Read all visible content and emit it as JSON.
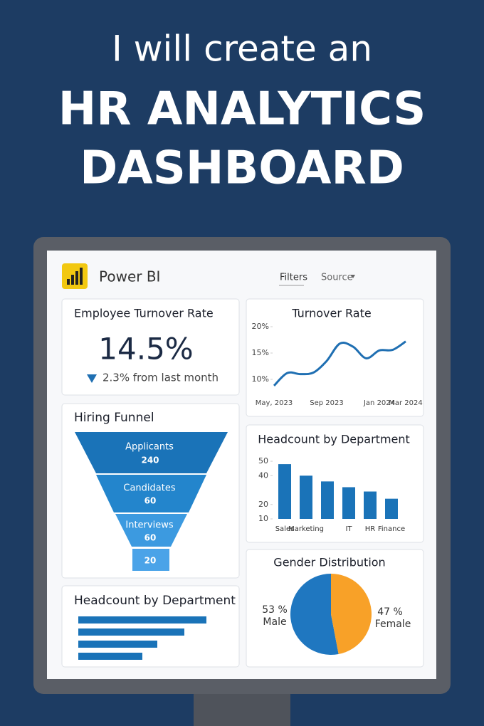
{
  "header": {
    "line1": "I will create an",
    "line2": "HR ANALYTICS",
    "line3": "DASHBOARD"
  },
  "toolbar": {
    "app": "Power BI",
    "filters": "Filters",
    "source": "Source"
  },
  "kpi": {
    "title": "Employee Turnover Rate",
    "value": "14.5%",
    "change": "2.3% from last month"
  },
  "chart_data": [
    {
      "type": "line",
      "title": "Turnover Rate",
      "categories": [
        "May, 2023",
        null,
        null,
        null,
        "Sep 2023",
        null,
        null,
        null,
        "Jan 2024",
        null,
        "Mar 2024"
      ],
      "series": [
        {
          "color": "#1f6fb2",
          "values": [
            8.8,
            11.2,
            11.0,
            11.3,
            13.5,
            16.8,
            16.2,
            14.0,
            15.5,
            15.6,
            17.2
          ]
        }
      ],
      "ylim": [
        8,
        20.5
      ],
      "yticks": [
        {
          "value": 10,
          "label": "10%"
        },
        {
          "value": 15,
          "label": "15%"
        },
        {
          "value": 20,
          "label": "20%"
        }
      ]
    },
    {
      "type": "bar",
      "title": "Headcount by Department",
      "categories": [
        "Sales",
        "Marketing",
        null,
        "IT",
        "HR",
        "Finance"
      ],
      "values": [
        48,
        40,
        36,
        32,
        29,
        24
      ],
      "color": "#1a73b8",
      "ylim": [
        10,
        52
      ],
      "yticks": [
        10,
        20,
        40,
        50
      ]
    },
    {
      "type": "funnel",
      "title": "Hiring Funnel",
      "categories": [
        "Applicants",
        "Candidates",
        "Interviews",
        null
      ],
      "values": [
        240,
        60,
        60,
        20
      ],
      "colors": [
        "#1a73b8",
        "#2385cc",
        "#3c9ae0",
        "#4aa3e8"
      ]
    },
    {
      "type": "hbar",
      "title": "Headcount by Department",
      "values": [
        180,
        149,
        111,
        90
      ],
      "xlim": [
        0,
        205
      ],
      "color": "#1a73b8"
    },
    {
      "type": "pie",
      "title": "Gender Distribution",
      "categories": [
        "Male",
        "Female"
      ],
      "values": [
        53,
        47
      ],
      "value_labels": [
        "53 %",
        "47 %"
      ],
      "colors": [
        "#1f77c0",
        "#f8a128"
      ]
    }
  ]
}
